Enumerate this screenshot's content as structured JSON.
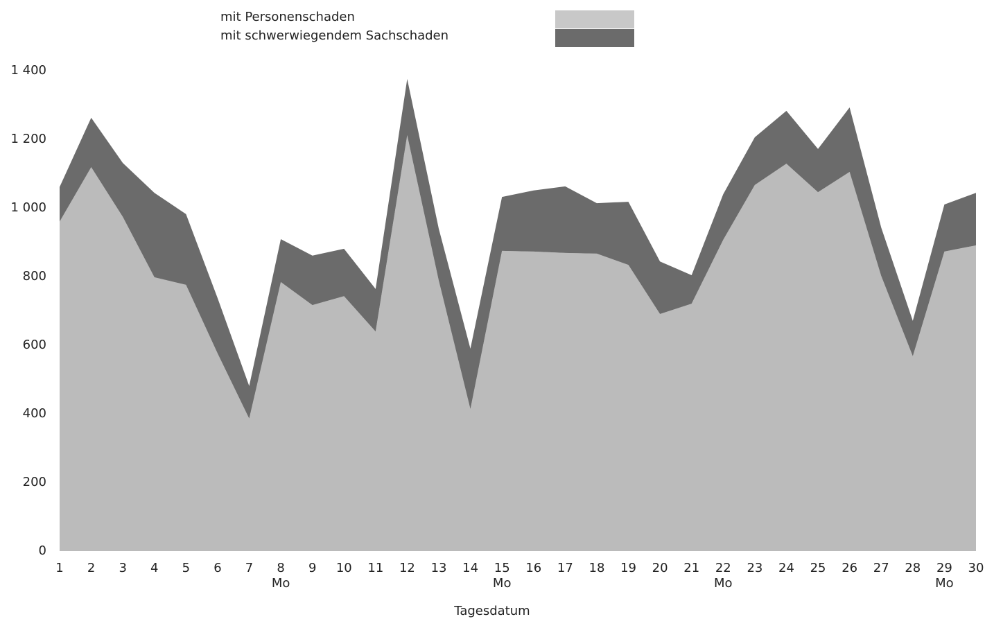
{
  "chart_data": {
    "type": "stacked_area",
    "x_label": "Tagesdatum",
    "x": [
      1,
      2,
      3,
      4,
      5,
      6,
      7,
      8,
      9,
      10,
      11,
      12,
      13,
      14,
      15,
      16,
      17,
      18,
      19,
      20,
      21,
      22,
      23,
      24,
      25,
      26,
      27,
      28,
      29,
      30
    ],
    "xlim": [
      1,
      30
    ],
    "xticks": [
      1,
      2,
      3,
      4,
      5,
      6,
      7,
      8,
      9,
      10,
      11,
      12,
      13,
      14,
      15,
      16,
      17,
      18,
      19,
      20,
      21,
      22,
      23,
      24,
      25,
      26,
      27,
      28,
      29,
      30
    ],
    "x_sublabels": [
      {
        "x": 8,
        "label": "Mo"
      },
      {
        "x": 15,
        "label": "Mo"
      },
      {
        "x": 22,
        "label": "Mo"
      },
      {
        "x": 29,
        "label": "Mo"
      }
    ],
    "ylim": [
      0,
      1400
    ],
    "yticks": [
      0,
      200,
      400,
      600,
      800,
      {
        "value": 1000,
        "label": "1 000"
      },
      {
        "value": 1200,
        "label": "1 200"
      },
      {
        "value": 1400,
        "label": "1 400"
      }
    ],
    "series": [
      {
        "name": "mit Personenschaden",
        "color": "#bbbbbb",
        "values": [
          960,
          1119,
          974,
          798,
          776,
          576,
          386,
          784,
          717,
          743,
          640,
          1212,
          788,
          414,
          875,
          873,
          869,
          867,
          834,
          691,
          721,
          907,
          1067,
          1129,
          1046,
          1105,
          802,
          568,
          873,
          891
        ]
      },
      {
        "name": "mit schwerwiegendem Sachschaden",
        "color": "#6b6b6b",
        "values": [
          101,
          144,
          157,
          246,
          206,
          161,
          95,
          125,
          144,
          138,
          124,
          164,
          151,
          176,
          157,
          178,
          194,
          147,
          184,
          153,
          83,
          133,
          139,
          154,
          126,
          188,
          141,
          103,
          137,
          153
        ]
      }
    ]
  }
}
